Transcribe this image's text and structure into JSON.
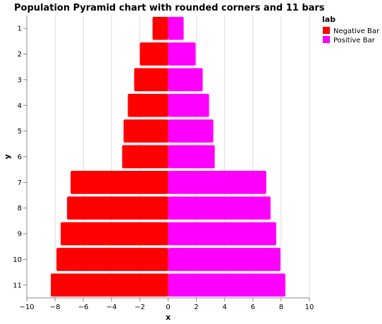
{
  "chart_data": {
    "type": "bar",
    "orientation": "horizontal",
    "title": "Population Pyramid chart with rounded corners and 11 bars",
    "xlabel": "x",
    "ylabel": "y",
    "xlim": [
      -10,
      10
    ],
    "x_ticks": [
      -10,
      -8,
      -6,
      -4,
      -2,
      0,
      2,
      4,
      6,
      8,
      10
    ],
    "x_tick_labels": [
      "−10",
      "−8",
      "−6",
      "−4",
      "−2",
      "0",
      "2",
      "4",
      "6",
      "8",
      "10"
    ],
    "categories": [
      "1",
      "2",
      "3",
      "4",
      "5",
      "6",
      "7",
      "8",
      "9",
      "10",
      "11"
    ],
    "grid": true,
    "legend_position": "top-right",
    "legend_title": "lab",
    "series": [
      {
        "name": "Negative Bar",
        "color": "#ff0000",
        "values": [
          -1.1,
          -2.0,
          -2.4,
          -2.85,
          -3.15,
          -3.25,
          -6.9,
          -7.15,
          -7.6,
          -7.9,
          -8.3
        ]
      },
      {
        "name": "Positive Bar",
        "color": "#ff00ff",
        "values": [
          1.1,
          1.95,
          2.45,
          2.9,
          3.2,
          3.3,
          6.95,
          7.25,
          7.65,
          7.95,
          8.3
        ]
      }
    ]
  }
}
